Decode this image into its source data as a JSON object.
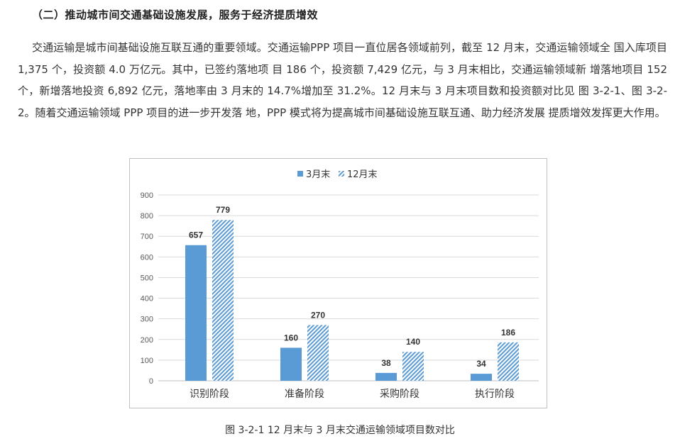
{
  "heading": "（二）推动城市间交通基础设施发展，服务于经济提质增效",
  "paragraph": "交通运输是城市间基础设施互联互通的重要领域。交通运输PPP 项目一直位居各领域前列，截至 12 月末，交通运输领域全 国入库项目 1,375 个，投资额 4.0 万亿元。其中，已签约落地项 目 186 个，投资额 7,429 亿元，与 3 月末相比，交通运输领域新 增落地项目 152 个，新增落地投资 6,892 亿元，落地率由 3 月末的 14.7%增加至 31.2%。12 月末与 3 月末项目数和投资额对比见 图 3-2-1、图 3-2-2。随着交通运输领域 PPP 项目的进一步开发落 地，PPP 模式将为提高城市间基础设施互联互通、助力经济发展 提质增效发挥更大作用。",
  "caption": "图 3-2-1   12 月末与 3 月末交通运输领域项目数对比",
  "chart_data": {
    "type": "bar",
    "categories": [
      "识别阶段",
      "准备阶段",
      "采购阶段",
      "执行阶段"
    ],
    "series": [
      {
        "name": "3月末",
        "values": [
          657,
          160,
          38,
          34
        ],
        "color": "#5b9bd5",
        "pattern": "solid"
      },
      {
        "name": "12月末",
        "values": [
          779,
          270,
          140,
          186
        ],
        "color": "#5b9bd5",
        "pattern": "diagonal-hatch"
      }
    ],
    "ylim": [
      0,
      900
    ],
    "yticks": [
      0,
      100,
      200,
      300,
      400,
      500,
      600,
      700,
      800,
      900
    ],
    "grid": true,
    "legend": "top",
    "data_labels": true
  }
}
